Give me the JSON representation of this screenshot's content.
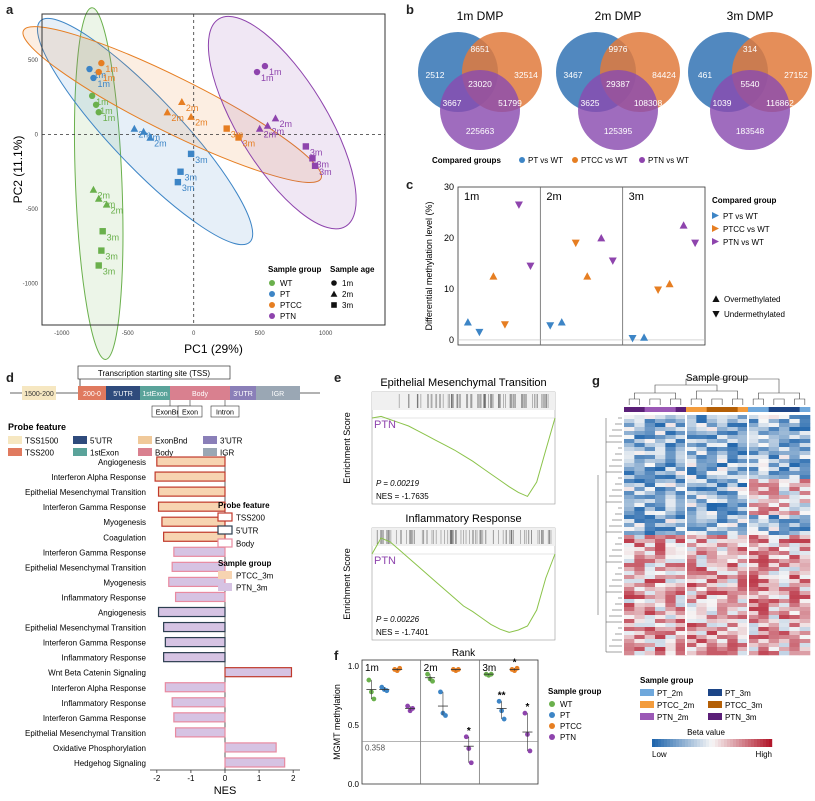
{
  "panels": {
    "a": "a",
    "b": "b",
    "c": "c",
    "d": "d",
    "e": "e",
    "f": "f",
    "g": "g"
  },
  "colors": {
    "WT": "#6ab04c",
    "PT": "#3d85c6",
    "PTCC": "#e67e22",
    "PTN": "#8e44ad",
    "venn_pt": "#3e7bb8",
    "venn_ptcc": "#e07a3c",
    "venn_ptn": "#8a4cb0",
    "heat_low": "#2166ac",
    "heat_high": "#b2182b",
    "PT_2m": "#6fa8dc",
    "PT_3m": "#1c4587",
    "PTCC_2m": "#f39c3d",
    "PTCC_3m": "#b45f06",
    "PTN_2m": "#9b59b6",
    "PTN_3m": "#5b1f78"
  },
  "chart_data": [
    {
      "panel": "a",
      "type": "scatter",
      "xlabel": "PC1 (29%)",
      "ylabel": "PC2 (11.1%)",
      "xlim": [
        -1150,
        1450
      ],
      "ylim": [
        -1280,
        810
      ],
      "xticks": [
        "-1000",
        "-500",
        "0",
        "500",
        "1000"
      ],
      "yticks": [
        "500",
        "0",
        "-500",
        "-1000"
      ],
      "legend_sample_group": {
        "title": "Sample group",
        "items": [
          "WT",
          "PT",
          "PTCC",
          "PTN"
        ]
      },
      "legend_sample_age": {
        "title": "Sample age",
        "items": [
          "1m",
          "2m",
          "3m"
        ]
      },
      "points": [
        {
          "g": "WT",
          "age": "1m",
          "x": -770,
          "y": 260,
          "label": "1m"
        },
        {
          "g": "WT",
          "age": "1m",
          "x": -740,
          "y": 200,
          "label": "1m"
        },
        {
          "g": "WT",
          "age": "1m",
          "x": -720,
          "y": 150,
          "label": "1m"
        },
        {
          "g": "WT",
          "age": "2m",
          "x": -760,
          "y": -370,
          "label": "2m"
        },
        {
          "g": "WT",
          "age": "2m",
          "x": -720,
          "y": -430,
          "label": "2m"
        },
        {
          "g": "WT",
          "age": "2m",
          "x": -660,
          "y": -470,
          "label": "2m"
        },
        {
          "g": "WT",
          "age": "3m",
          "x": -690,
          "y": -650,
          "label": "3m"
        },
        {
          "g": "WT",
          "age": "3m",
          "x": -700,
          "y": -780,
          "label": "3m"
        },
        {
          "g": "WT",
          "age": "3m",
          "x": -720,
          "y": -880,
          "label": "3m"
        },
        {
          "g": "PT",
          "age": "1m",
          "x": -790,
          "y": 440,
          "label": "1m"
        },
        {
          "g": "PT",
          "age": "1m",
          "x": -760,
          "y": 380,
          "label": "1m"
        },
        {
          "g": "PT",
          "age": "2m",
          "x": -450,
          "y": 40,
          "label": "2m"
        },
        {
          "g": "PT",
          "age": "2m",
          "x": -380,
          "y": 20,
          "label": "2m"
        },
        {
          "g": "PT",
          "age": "2m",
          "x": -330,
          "y": -20,
          "label": "2m"
        },
        {
          "g": "PT",
          "age": "3m",
          "x": -20,
          "y": -130,
          "label": "3m"
        },
        {
          "g": "PT",
          "age": "3m",
          "x": -100,
          "y": -250,
          "label": "3m"
        },
        {
          "g": "PT",
          "age": "3m",
          "x": -120,
          "y": -320,
          "label": "3m"
        },
        {
          "g": "PTCC",
          "age": "1m",
          "x": -700,
          "y": 480,
          "label": "1m"
        },
        {
          "g": "PTCC",
          "age": "1m",
          "x": -720,
          "y": 420,
          "label": "1m"
        },
        {
          "g": "PTCC",
          "age": "2m",
          "x": -200,
          "y": 150,
          "label": "2m"
        },
        {
          "g": "PTCC",
          "age": "2m",
          "x": -90,
          "y": 220,
          "label": "2m"
        },
        {
          "g": "PTCC",
          "age": "2m",
          "x": -20,
          "y": 120,
          "label": "2m"
        },
        {
          "g": "PTCC",
          "age": "3m",
          "x": 250,
          "y": 40,
          "label": "3m"
        },
        {
          "g": "PTCC",
          "age": "3m",
          "x": 340,
          "y": -20,
          "label": "3m"
        },
        {
          "g": "PTN",
          "age": "1m",
          "x": 480,
          "y": 420,
          "label": "1m"
        },
        {
          "g": "PTN",
          "age": "1m",
          "x": 540,
          "y": 460,
          "label": "1m"
        },
        {
          "g": "PTN",
          "age": "2m",
          "x": 620,
          "y": 110,
          "label": "2m"
        },
        {
          "g": "PTN",
          "age": "2m",
          "x": 560,
          "y": 60,
          "label": "2m"
        },
        {
          "g": "PTN",
          "age": "2m",
          "x": 500,
          "y": 40,
          "label": "2m"
        },
        {
          "g": "PTN",
          "age": "3m",
          "x": 850,
          "y": -80,
          "label": "3m"
        },
        {
          "g": "PTN",
          "age": "3m",
          "x": 900,
          "y": -160,
          "label": "3m"
        },
        {
          "g": "PTN",
          "age": "3m",
          "x": 920,
          "y": -210,
          "label": "3m"
        }
      ]
    },
    {
      "panel": "b",
      "type": "venn",
      "legend_title": "Compared groups",
      "legend_items": [
        "PT vs WT",
        "PTCC vs WT",
        "PTN vs WT"
      ],
      "diagrams": [
        {
          "title": "1m DMP",
          "pt_only": "2512",
          "pt_ptcc": "8651",
          "ptcc_only": "32514",
          "all": "23020",
          "pt_ptn": "3667",
          "ptcc_ptn": "51799",
          "ptn_only": "225663"
        },
        {
          "title": "2m DMP",
          "pt_only": "3467",
          "pt_ptcc": "9976",
          "ptcc_only": "84424",
          "all": "29387",
          "pt_ptn": "3625",
          "ptcc_ptn": "108308",
          "ptn_only": "125395"
        },
        {
          "title": "3m DMP",
          "pt_only": "461",
          "pt_ptcc": "314",
          "ptcc_only": "27152",
          "all": "5540",
          "pt_ptn": "1039",
          "ptcc_ptn": "116862",
          "ptn_only": "183548"
        }
      ]
    },
    {
      "panel": "c",
      "type": "scatter",
      "ylabel": "Differential methylation level (%)",
      "ylim": [
        -1,
        30
      ],
      "yticks": [
        "0",
        "10",
        "20",
        "30"
      ],
      "facets": [
        "1m",
        "2m",
        "3m"
      ],
      "legend_title": "Compared group",
      "legend_items": [
        "PT vs WT",
        "PTCC vs WT",
        "PTN vs WT"
      ],
      "shape_items": [
        "Overmethylated",
        "Undermethylated"
      ],
      "points": [
        {
          "facet": "1m",
          "g": "PT",
          "dir": "up",
          "y": 3.5
        },
        {
          "facet": "1m",
          "g": "PT",
          "dir": "down",
          "y": 1.5
        },
        {
          "facet": "1m",
          "g": "PTCC",
          "dir": "up",
          "y": 12.5
        },
        {
          "facet": "1m",
          "g": "PTCC",
          "dir": "down",
          "y": 3.0
        },
        {
          "facet": "1m",
          "g": "PTN",
          "dir": "down",
          "y": 26.5
        },
        {
          "facet": "1m",
          "g": "PTN",
          "dir": "down",
          "y": 14.5
        },
        {
          "facet": "2m",
          "g": "PT",
          "dir": "down",
          "y": 2.8
        },
        {
          "facet": "2m",
          "g": "PT",
          "dir": "up",
          "y": 3.5
        },
        {
          "facet": "2m",
          "g": "PTCC",
          "dir": "down",
          "y": 19.0
        },
        {
          "facet": "2m",
          "g": "PTCC",
          "dir": "up",
          "y": 12.5
        },
        {
          "facet": "2m",
          "g": "PTN",
          "dir": "up",
          "y": 20.0
        },
        {
          "facet": "2m",
          "g": "PTN",
          "dir": "down",
          "y": 15.5
        },
        {
          "facet": "3m",
          "g": "PT",
          "dir": "down",
          "y": 0.3
        },
        {
          "facet": "3m",
          "g": "PT",
          "dir": "up",
          "y": 0.5
        },
        {
          "facet": "3m",
          "g": "PTCC",
          "dir": "down",
          "y": 9.8
        },
        {
          "facet": "3m",
          "g": "PTCC",
          "dir": "up",
          "y": 11.0
        },
        {
          "facet": "3m",
          "g": "PTN",
          "dir": "up",
          "y": 22.5
        },
        {
          "facet": "3m",
          "g": "PTN",
          "dir": "down",
          "y": 19.0
        }
      ]
    },
    {
      "panel": "d",
      "type": "bar",
      "xlabel": "NES",
      "xlim": [
        -2.2,
        2.2
      ],
      "xticks": [
        "-2",
        "-1",
        "0",
        "1",
        "2"
      ],
      "gene_model": [
        "1500-200",
        "200-0",
        "5'UTR",
        "1stExon",
        "Body",
        "3'UTR",
        "IGR"
      ],
      "tss_label": "Transcription starting site (TSS)",
      "sub_labels": [
        "ExonBnd",
        "Exon",
        "Intron"
      ],
      "probe_legend_title": "Probe feature",
      "probe_items": [
        "TSS1500",
        "5'UTR",
        "ExonBnd",
        "3'UTR",
        "TSS200",
        "1stExon",
        "Body",
        "IGR"
      ],
      "bar_legend_feature_title": "Probe feature",
      "bar_legend_feature": [
        "TSS200",
        "5'UTR",
        "Body"
      ],
      "bar_legend_group_title": "Sample group",
      "bar_legend_group": [
        "PTCC_3m",
        "PTN_3m"
      ],
      "categories": [
        "Angiogenesis",
        "Interferon Alpha Response",
        "Epithelial Mesenchymal Transition",
        "Interferon Gamma Response",
        "Myogenesis",
        "Coagulation",
        "Interferon Gamma Response",
        "Epithelial Mesenchymal Transition",
        "Myogenesis",
        "Inflammatory Response",
        "Angiogenesis",
        "Epithelial Mesenchymal Transition",
        "Interferon Gamma Response",
        "Inflammatory Response",
        "Wnt Beta Catenin Signaling",
        "Interferon Alpha Response",
        "Inflammatory Response",
        "Interferon Gamma Response",
        "Epithelial Mesenchymal Transition",
        "Oxidative Phosphorylation",
        "Hedgehog Signaling"
      ],
      "values": [
        -2.0,
        -2.05,
        -1.95,
        -1.95,
        -1.85,
        -1.8,
        -1.5,
        -1.55,
        -1.65,
        -1.45,
        -1.95,
        -1.8,
        -1.75,
        -1.8,
        1.95,
        -1.75,
        -1.55,
        -1.5,
        -1.45,
        1.5,
        1.75
      ],
      "features": [
        "TSS200",
        "TSS200",
        "TSS200",
        "TSS200",
        "TSS200",
        "TSS200",
        "Body",
        "Body",
        "Body",
        "Body",
        "5'UTR",
        "5'UTR",
        "5'UTR",
        "5'UTR",
        "TSS200",
        "Body",
        "Body",
        "Body",
        "Body",
        "Body",
        "Body"
      ],
      "groups": [
        "PTCC_3m",
        "PTCC_3m",
        "PTCC_3m",
        "PTCC_3m",
        "PTCC_3m",
        "PTCC_3m",
        "PTN_3m",
        "PTN_3m",
        "PTN_3m",
        "PTN_3m",
        "PTN_3m",
        "PTN_3m",
        "PTN_3m",
        "PTN_3m",
        "PTN_3m",
        "PTN_3m",
        "PTN_3m",
        "PTN_3m",
        "PTN_3m",
        "PTN_3m",
        "PTN_3m"
      ]
    },
    {
      "panel": "e",
      "type": "line",
      "xlabel": "Rank",
      "ylabel": "Enrichment Score",
      "plots": [
        {
          "title": "Epithelial Mesenchymal Transition",
          "group": "PTN",
          "p": "P = 0.00219",
          "nes": "NES = -1.7635",
          "x": [
            0,
            0.05,
            0.1,
            0.15,
            0.2,
            0.25,
            0.3,
            0.35,
            0.4,
            0.45,
            0.5,
            0.55,
            0.6,
            0.65,
            0.7,
            0.75,
            0.8,
            0.85,
            0.9,
            0.95,
            1.0
          ],
          "es": [
            0,
            0.02,
            -0.02,
            -0.06,
            -0.1,
            -0.16,
            -0.22,
            -0.28,
            -0.34,
            -0.4,
            -0.47,
            -0.54,
            -0.62,
            -0.7,
            -0.78,
            -0.86,
            -0.93,
            -0.98,
            -0.8,
            -0.4,
            0
          ]
        },
        {
          "title": "Inflammatory Response",
          "group": "PTN",
          "p": "P = 0.00226",
          "nes": "NES = -1.7401",
          "x": [
            0,
            0.05,
            0.1,
            0.15,
            0.2,
            0.25,
            0.3,
            0.35,
            0.4,
            0.45,
            0.5,
            0.55,
            0.6,
            0.65,
            0.7,
            0.75,
            0.8,
            0.85,
            0.9,
            0.95,
            1.0
          ],
          "es": [
            0,
            0.2,
            0.15,
            0.05,
            -0.05,
            -0.15,
            -0.25,
            -0.35,
            -0.45,
            -0.55,
            -0.65,
            -0.72,
            -0.8,
            -0.88,
            -0.94,
            -0.98,
            -0.95,
            -0.9,
            -0.7,
            -0.3,
            0
          ]
        }
      ]
    },
    {
      "panel": "f",
      "type": "scatter",
      "ylabel": "MGMT methylation",
      "ylim": [
        0,
        1.05
      ],
      "yticks": [
        "0.0",
        "0.5",
        "1.0"
      ],
      "ref_label": "0.358",
      "ref_value": 0.358,
      "facets": [
        "1m",
        "2m",
        "3m"
      ],
      "legend_title": "Sample group",
      "legend_items": [
        "WT",
        "PT",
        "PTCC",
        "PTN"
      ],
      "groups": [
        {
          "facet": "1m",
          "g": "WT",
          "vals": [
            0.88,
            0.78,
            0.72
          ],
          "mean": 0.8,
          "sig": ""
        },
        {
          "facet": "1m",
          "g": "PT",
          "vals": [
            0.82,
            0.8,
            0.79
          ],
          "mean": 0.8,
          "sig": ""
        },
        {
          "facet": "1m",
          "g": "PTCC",
          "vals": [
            0.97,
            0.96,
            0.98
          ],
          "mean": 0.97,
          "sig": ""
        },
        {
          "facet": "1m",
          "g": "PTN",
          "vals": [
            0.66,
            0.62,
            0.64
          ],
          "mean": 0.64,
          "sig": ""
        },
        {
          "facet": "2m",
          "g": "WT",
          "vals": [
            0.93,
            0.89,
            0.87
          ],
          "mean": 0.9,
          "sig": ""
        },
        {
          "facet": "2m",
          "g": "PT",
          "vals": [
            0.78,
            0.6,
            0.58
          ],
          "mean": 0.66,
          "sig": ""
        },
        {
          "facet": "2m",
          "g": "PTCC",
          "vals": [
            0.97,
            0.96,
            0.97
          ],
          "mean": 0.97,
          "sig": ""
        },
        {
          "facet": "2m",
          "g": "PTN",
          "vals": [
            0.4,
            0.3,
            0.18
          ],
          "mean": 0.32,
          "sig": "*"
        },
        {
          "facet": "3m",
          "g": "WT",
          "vals": [
            0.93,
            0.92,
            0.93
          ],
          "mean": 0.93,
          "sig": ""
        },
        {
          "facet": "3m",
          "g": "PT",
          "vals": [
            0.7,
            0.62,
            0.55
          ],
          "mean": 0.64,
          "sig": "**"
        },
        {
          "facet": "3m",
          "g": "PTCC",
          "vals": [
            0.97,
            0.96,
            0.98
          ],
          "mean": 0.97,
          "sig": "*"
        },
        {
          "facet": "3m",
          "g": "PTN",
          "vals": [
            0.6,
            0.42,
            0.28
          ],
          "mean": 0.44,
          "sig": "*"
        }
      ]
    },
    {
      "panel": "g",
      "type": "heatmap",
      "title": "Sample group",
      "legend_title": "Sample group",
      "legend_items": [
        "PT_2m",
        "PT_3m",
        "PTCC_2m",
        "PTCC_3m",
        "PTN_2m",
        "PTN_3m"
      ],
      "colorbar_title": "Beta value",
      "colorbar_low": "Low",
      "colorbar_high": "High"
    }
  ]
}
